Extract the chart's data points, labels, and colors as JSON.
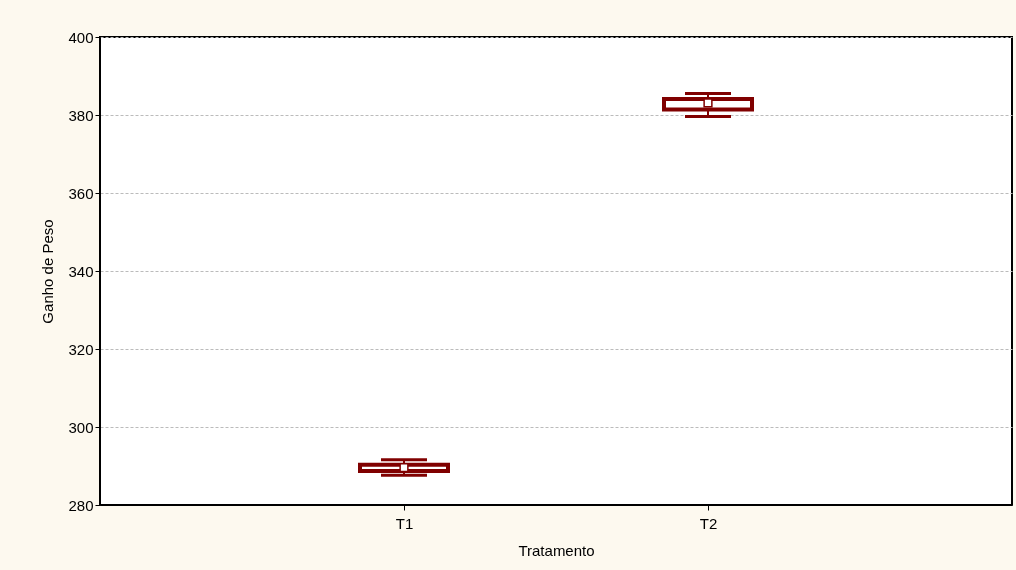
{
  "chart_data": {
    "type": "box",
    "xlabel": "Tratamento",
    "ylabel": "Ganho de Peso",
    "categories": [
      "T1",
      "T2"
    ],
    "boxes": [
      {
        "low": 287.6,
        "q1": 288.7,
        "median": 289.6,
        "q3": 290.3,
        "high": 291.6
      },
      {
        "low": 379.6,
        "q1": 381.4,
        "median": 383.1,
        "q3": 384.1,
        "high": 385.5
      }
    ],
    "color": "#800000",
    "ylim": [
      280,
      400
    ],
    "yticks": [
      280,
      300,
      320,
      340,
      360,
      380,
      400
    ],
    "grid": "y",
    "marker": "square"
  }
}
